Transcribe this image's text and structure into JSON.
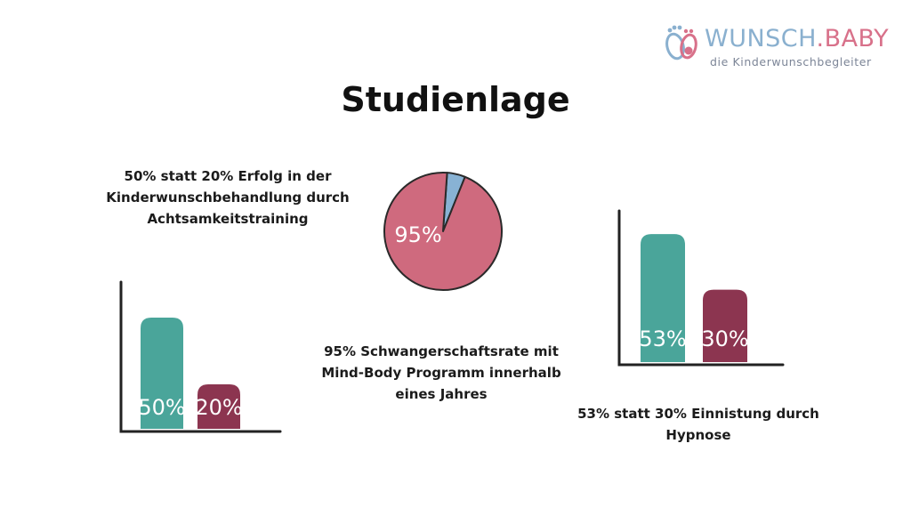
{
  "brand": {
    "name_part1": "WUNSCH",
    "name_part2": ".BABY",
    "tagline": "die Kinderwunschbegleiter",
    "colors": {
      "blue": "#8ab0cf",
      "pink": "#d8718a"
    }
  },
  "title": "Studienlage",
  "chart_data": [
    {
      "type": "bar",
      "categories": [
        "",
        ""
      ],
      "values": [
        50,
        20
      ],
      "value_labels": [
        "50%",
        "20%"
      ],
      "colors": [
        "#4aa59a",
        "#8c3550"
      ],
      "ylim": [
        0,
        70
      ],
      "caption": "50% statt 20% Erfolg in der Kinderwunschbehandlung durch Achtsamkeitstraining"
    },
    {
      "type": "pie",
      "values": [
        95,
        5
      ],
      "value_labels": [
        "95%",
        ""
      ],
      "colors": [
        "#cf6a7e",
        "#88b2d4"
      ],
      "caption": "95% Schwangerschaftsrate mit Mind-Body Programm innerhalb eines Jahres"
    },
    {
      "type": "bar",
      "categories": [
        "",
        ""
      ],
      "values": [
        53,
        30
      ],
      "value_labels": [
        "53%",
        "30%"
      ],
      "colors": [
        "#4aa59a",
        "#8c3550"
      ],
      "ylim": [
        0,
        70
      ],
      "caption": "53% statt 30% Einnistung durch Hypnose"
    }
  ]
}
